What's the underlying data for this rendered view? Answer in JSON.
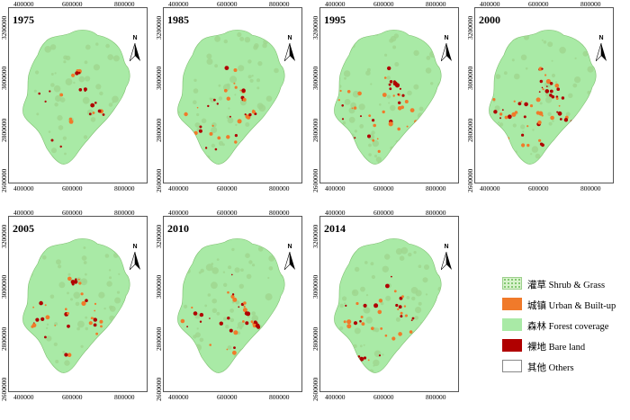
{
  "panels": [
    {
      "year": "1975"
    },
    {
      "year": "1985"
    },
    {
      "year": "1995"
    },
    {
      "year": "2000"
    },
    {
      "year": "2005"
    },
    {
      "year": "2010"
    },
    {
      "year": "2014"
    }
  ],
  "axes": {
    "x_ticks": [
      "400000",
      "600000",
      "800000"
    ],
    "y_ticks": [
      "3200000",
      "3000000",
      "2800000",
      "2600000"
    ]
  },
  "north_label": "N",
  "legend": [
    {
      "label": "灌草 Shrub & Grass",
      "color": "#b8e6a8",
      "pattern": "dotted"
    },
    {
      "label": "城镇 Urban & Built-up",
      "color": "#f07a2a",
      "pattern": "solid"
    },
    {
      "label": "森林 Forest coverage",
      "color": "#a9eaa6",
      "pattern": "solid"
    },
    {
      "label": "裸地 Bare land",
      "color": "#b00000",
      "pattern": "solid"
    },
    {
      "label": "其他 Others",
      "color": "#ffffff",
      "pattern": "solid"
    }
  ],
  "colors": {
    "forest": "#a9eaa6",
    "shrub": "#9fd68f",
    "urban": "#f07a2a",
    "bare": "#b00000"
  }
}
